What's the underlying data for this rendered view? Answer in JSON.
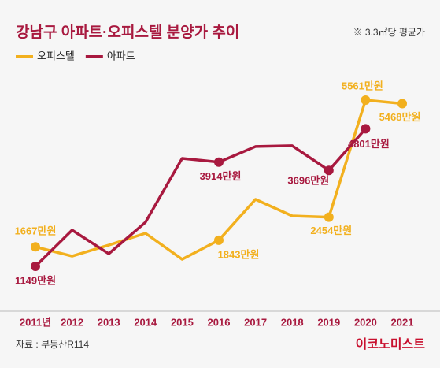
{
  "chart_data": {
    "type": "line",
    "title": "강남구 아파트·오피스텔 분양가 추이",
    "subtitle": "※ 3.3㎡당 평균가",
    "source": "자료 : 부동산R114",
    "brand": "이코노미스트",
    "categories": [
      "2011년",
      "2012",
      "2013",
      "2014",
      "2015",
      "2016",
      "2017",
      "2018",
      "2019",
      "2020",
      "2021"
    ],
    "ylim": [
      0,
      6000
    ],
    "legend": "top-left",
    "series": [
      {
        "name": "오피스텔",
        "color": "#f2b01e",
        "values": [
          1667,
          1421,
          1714,
          2028,
          1337,
          1843,
          2927,
          2488,
          2454,
          5561,
          5468
        ],
        "value_labels": [
          "1667만원",
          null,
          null,
          null,
          null,
          "1843만원",
          null,
          null,
          "2454만원",
          "5561만원",
          "5468만원"
        ]
      },
      {
        "name": "아파트",
        "color": "#a8193f",
        "values": [
          1149,
          2111,
          1484,
          2320,
          4015,
          3914,
          4329,
          4350,
          3696,
          4801,
          null
        ],
        "value_labels": [
          "1149만원",
          null,
          null,
          null,
          null,
          "3914만원",
          null,
          null,
          "3696만원",
          "4801만원",
          null
        ]
      }
    ]
  }
}
